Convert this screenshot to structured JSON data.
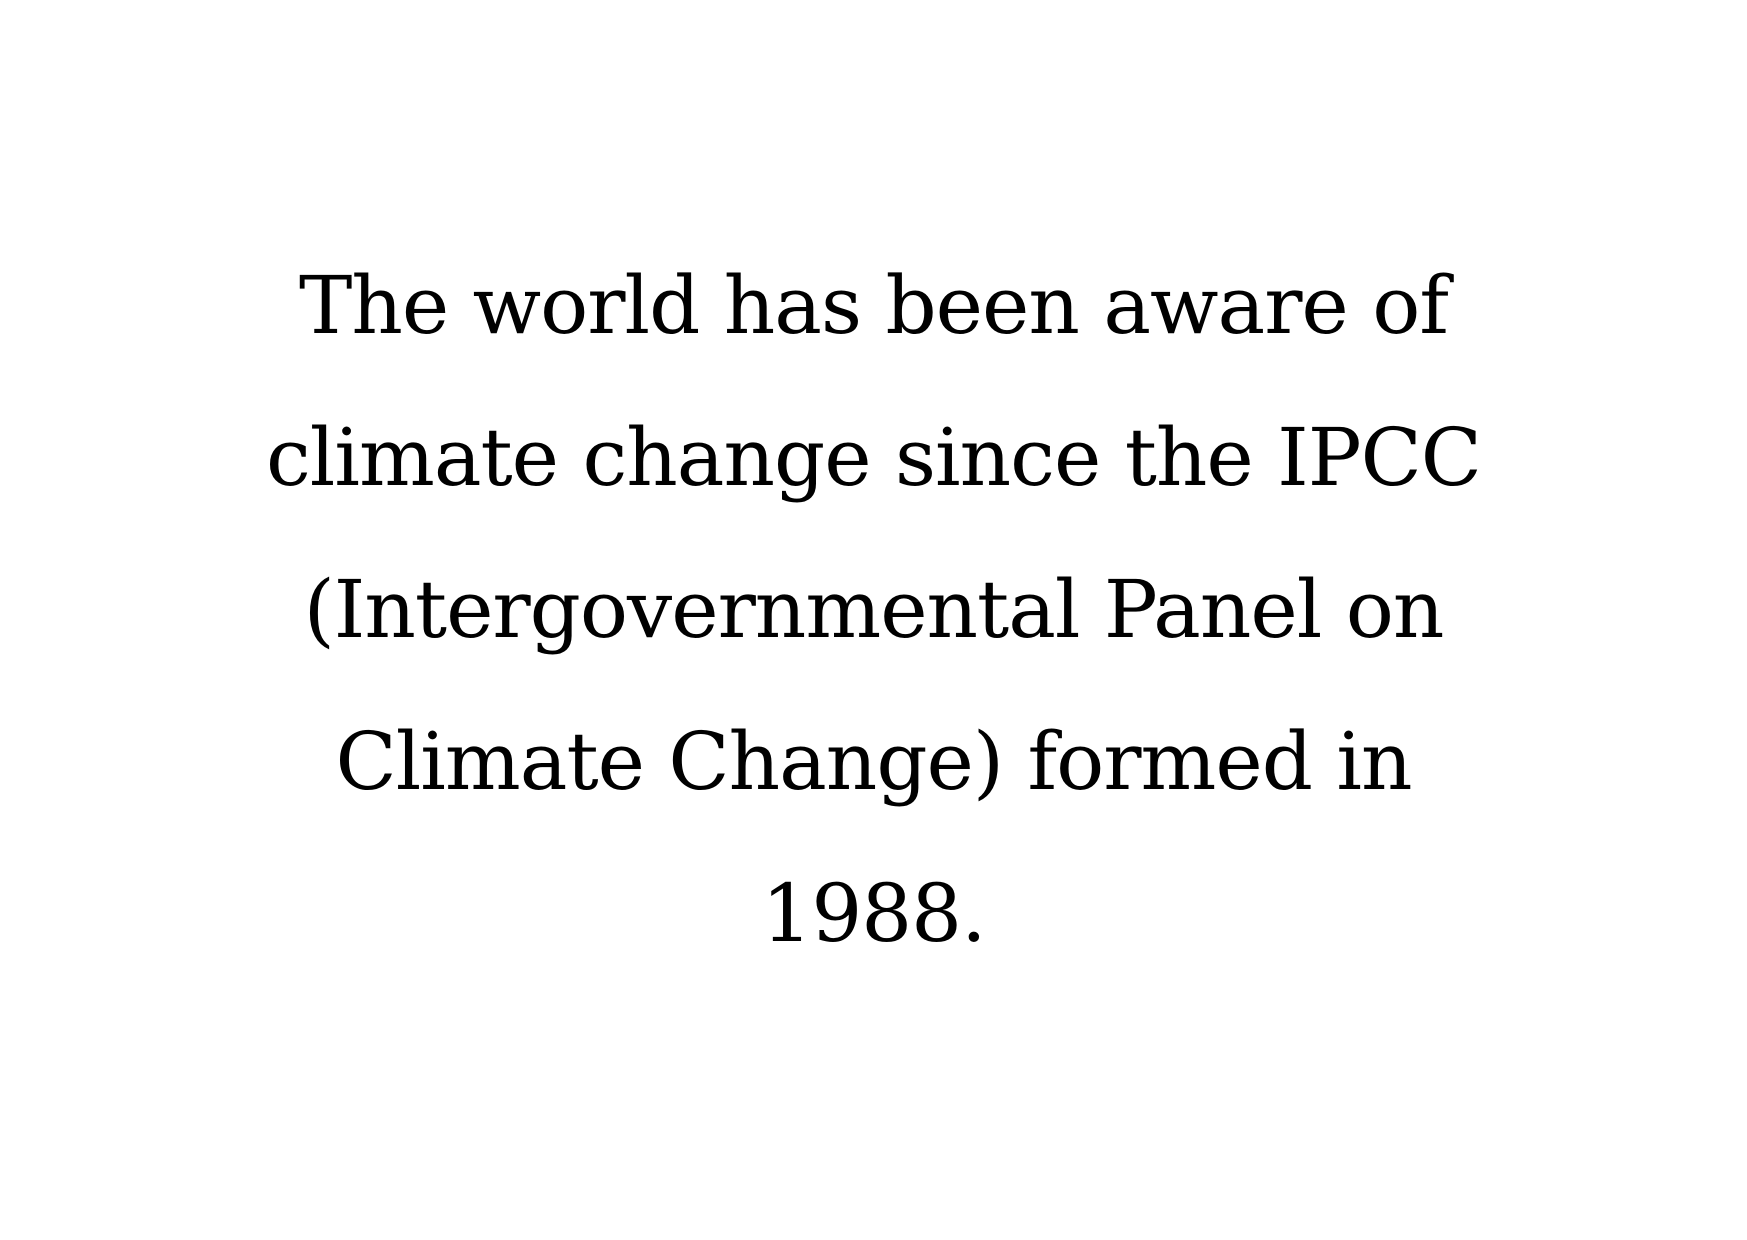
{
  "quote": {
    "lines": [
      "The world has been aware of",
      "climate change since the IPCC",
      "(Intergovernmental Panel on",
      "Climate Change) formed in",
      "1988."
    ]
  },
  "colors": {
    "background": "#ffffff",
    "text": "#000000"
  }
}
